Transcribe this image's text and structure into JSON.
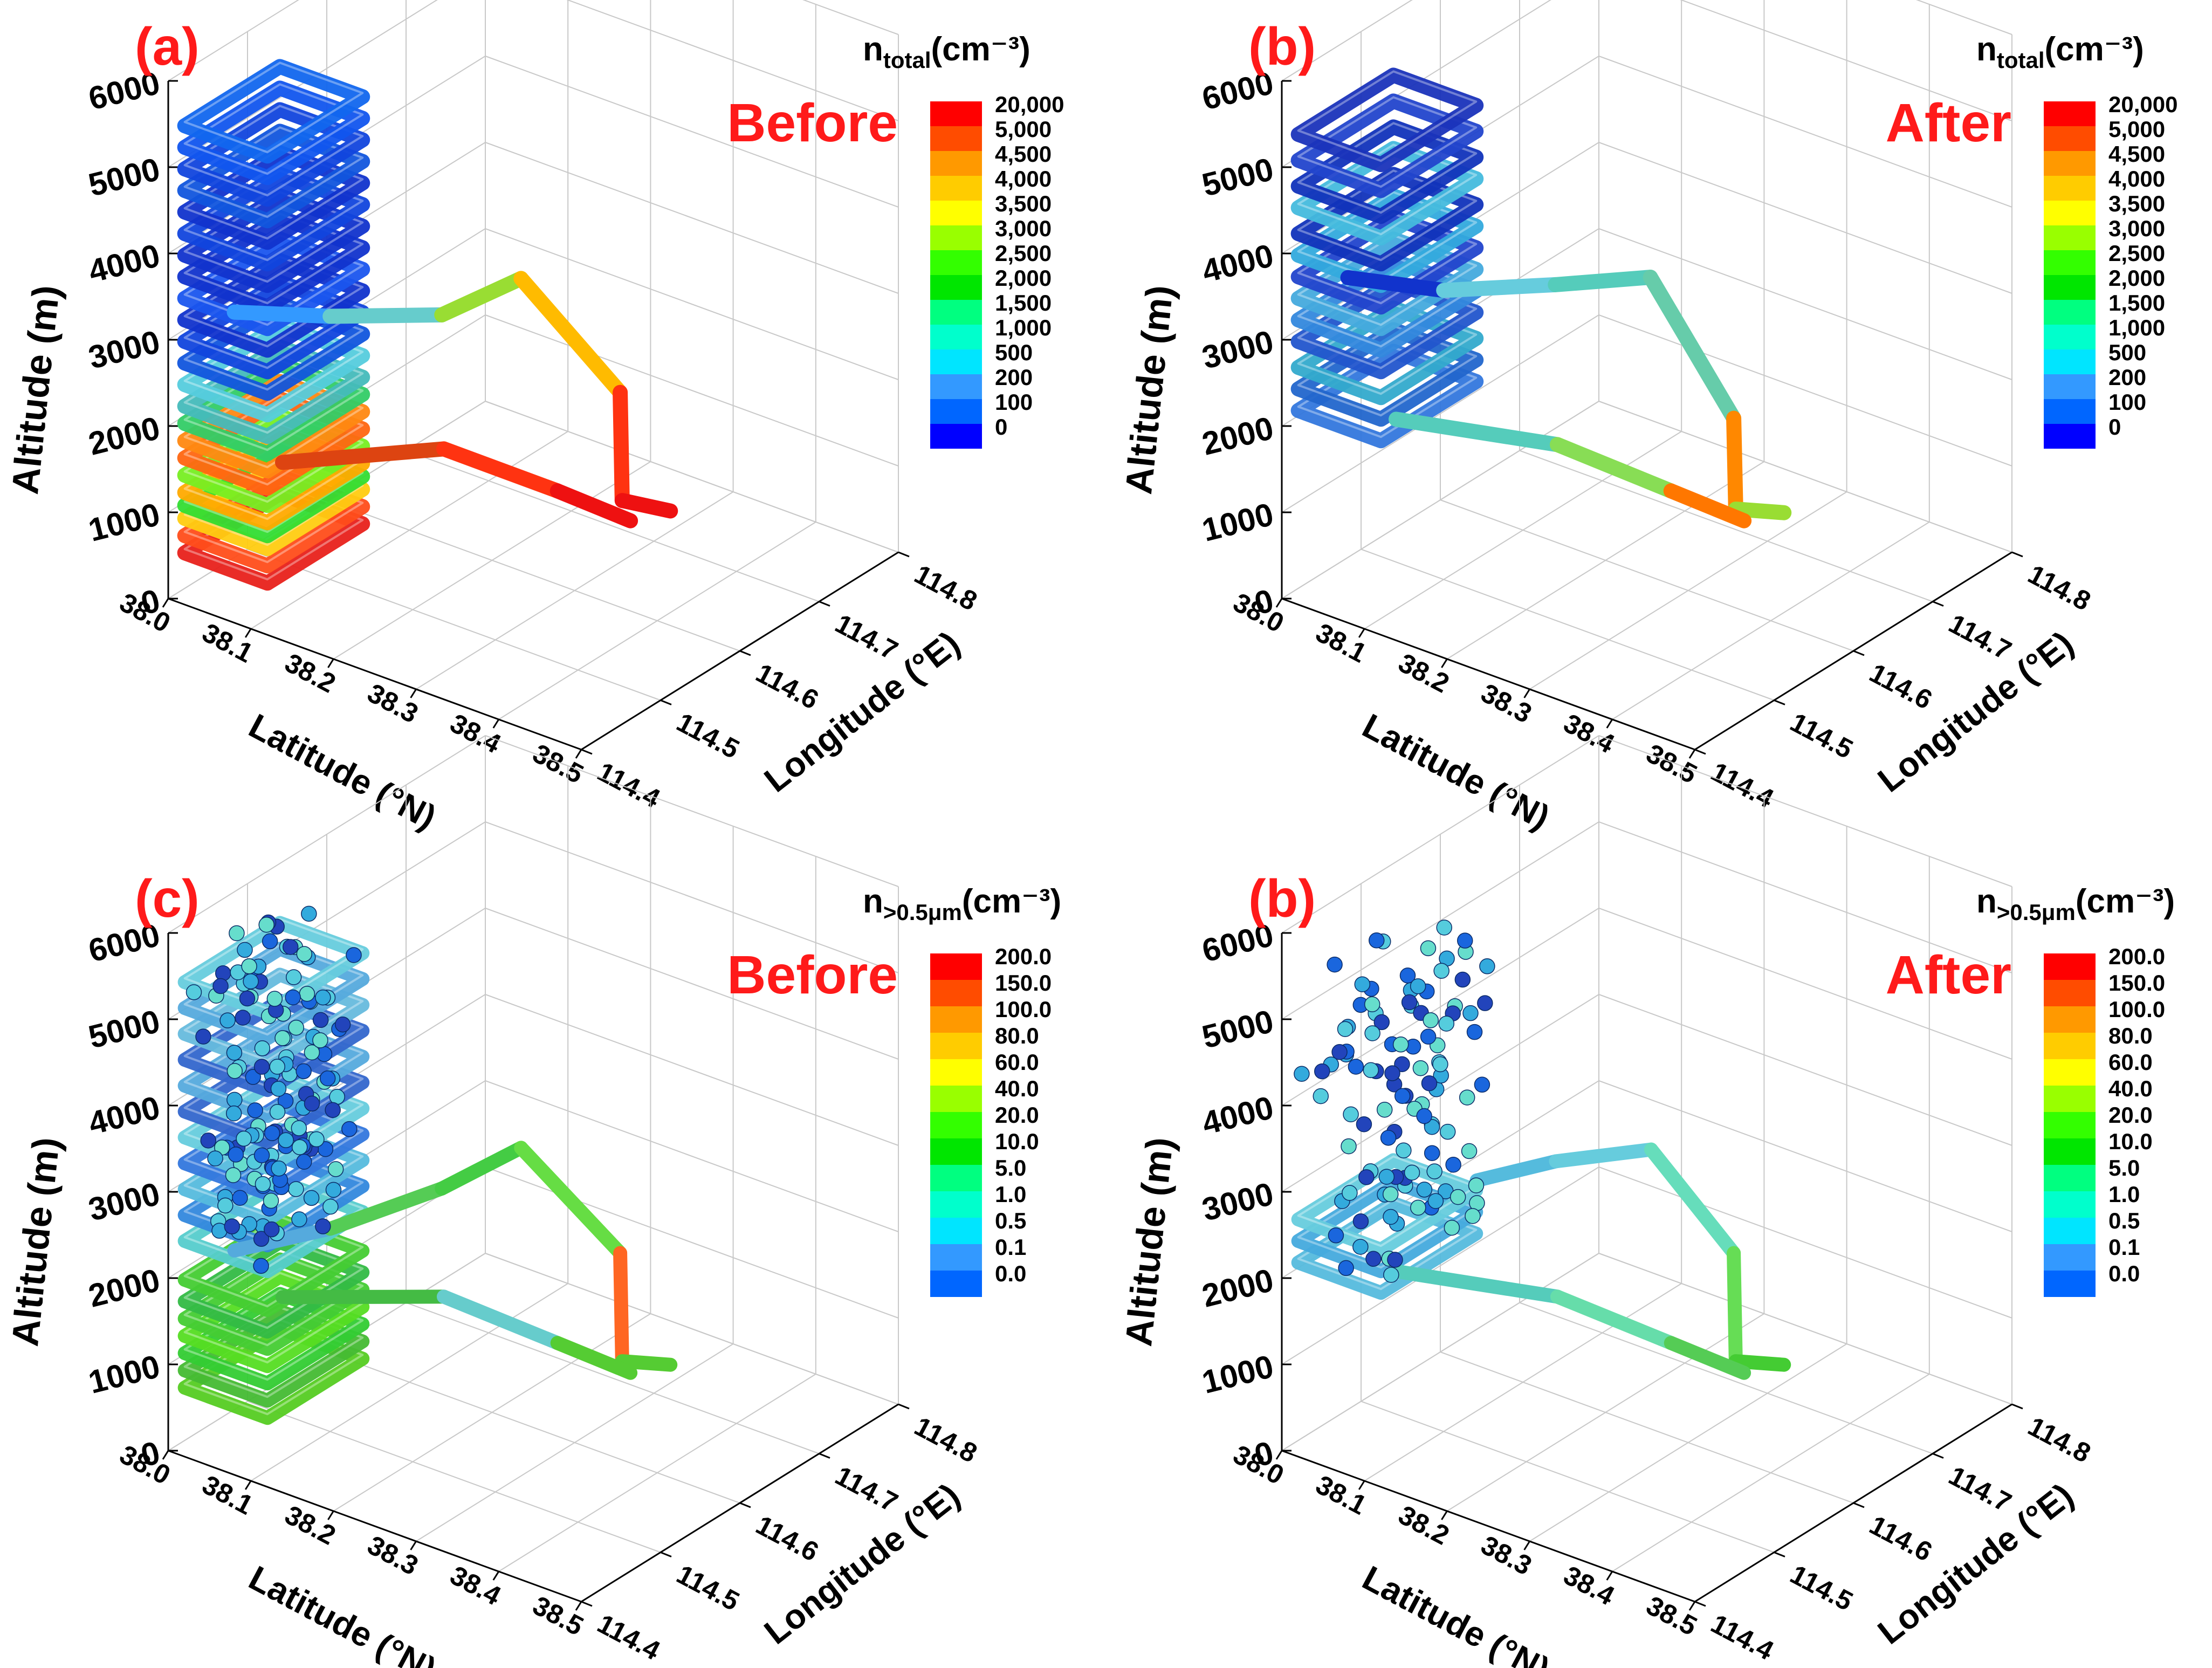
{
  "figure": {
    "panels": [
      {
        "label": "(a)",
        "state": "Before",
        "legend_title": {
          "main": "n",
          "sub": "total",
          "unit": "(cm⁻³)"
        },
        "legend_levels": [
          "20,000",
          "5,000",
          "4,500",
          "4,000",
          "3,500",
          "3,000",
          "2,500",
          "2,000",
          "1,500",
          "1,000",
          "500",
          "200",
          "100",
          "0"
        ]
      },
      {
        "label": "(b)",
        "state": "After",
        "legend_title": {
          "main": "n",
          "sub": "total",
          "unit": "(cm⁻³)"
        },
        "legend_levels": [
          "20,000",
          "5,000",
          "4,500",
          "4,000",
          "3,500",
          "3,000",
          "2,500",
          "2,000",
          "1,500",
          "1,000",
          "500",
          "200",
          "100",
          "0"
        ]
      },
      {
        "label": "(c)",
        "state": "Before",
        "legend_title": {
          "main": "n",
          "sub": ">0.5μm",
          "unit": "(cm⁻³)"
        },
        "legend_levels": [
          "200.0",
          "150.0",
          "100.0",
          "80.0",
          "60.0",
          "40.0",
          "20.0",
          "10.0",
          "5.0",
          "1.0",
          "0.5",
          "0.1",
          "0.0"
        ]
      },
      {
        "label": "(b)",
        "state": "After",
        "legend_title": {
          "main": "n",
          "sub": ">0.5μm",
          "unit": "(cm⁻³)"
        },
        "legend_levels": [
          "200.0",
          "150.0",
          "100.0",
          "80.0",
          "60.0",
          "40.0",
          "20.0",
          "10.0",
          "5.0",
          "1.0",
          "0.5",
          "0.1",
          "0.0"
        ]
      }
    ]
  },
  "chart_data": {
    "type": "3d-scatter-trajectory",
    "zlabel": "Altitude (m)",
    "xlabel": "Latitude (°N)",
    "ylabel": "Longitude (°E)",
    "z_ticks": [
      "0",
      "1000",
      "2000",
      "3000",
      "4000",
      "5000",
      "6000"
    ],
    "lat_ticks": [
      "38.0",
      "38.1",
      "38.2",
      "38.3",
      "38.4",
      "38.5"
    ],
    "lon_ticks": [
      "114.4",
      "114.5",
      "114.6",
      "114.7",
      "114.8"
    ],
    "zlim": [
      0,
      6000
    ],
    "lat_range": [
      38.0,
      38.5
    ],
    "lon_range": [
      114.4,
      114.8
    ],
    "colors": {
      "label_red": "#ff1a1a",
      "state_red": "#ff1a1a",
      "scale": [
        "#ff0000",
        "#ff4c00",
        "#ff9900",
        "#ffcc00",
        "#ffff00",
        "#99ff00",
        "#33ff00",
        "#00e600",
        "#00ff80",
        "#00ffcc",
        "#00e5ff",
        "#3399ff",
        "#0066ff",
        "#0000ff"
      ]
    },
    "series": [
      {
        "panel": 0,
        "name": "n_total before",
        "loop_band": [
          {
            "z": 600,
            "c": "#e8211b"
          },
          {
            "z": 800,
            "c": "#ff4d1a"
          },
          {
            "z": 1000,
            "c": "#ffcc11"
          },
          {
            "z": 1150,
            "c": "#33dd33"
          },
          {
            "z": 1300,
            "c": "#ffaa00"
          },
          {
            "z": 1500,
            "c": "#77ee22"
          },
          {
            "z": 1700,
            "c": "#ff6611"
          },
          {
            "z": 1900,
            "c": "#ff8811"
          },
          {
            "z": 2100,
            "c": "#33cc66"
          },
          {
            "z": 2300,
            "c": "#44bbbb"
          },
          {
            "z": 2550,
            "c": "#55ccdd"
          },
          {
            "z": 2800,
            "c": "#1155dd"
          },
          {
            "z": 3050,
            "c": "#1144dd"
          },
          {
            "z": 3300,
            "c": "#1133cc"
          },
          {
            "z": 3550,
            "c": "#1a55ee"
          },
          {
            "z": 3800,
            "c": "#1133cc"
          },
          {
            "z": 4050,
            "c": "#1133cc"
          },
          {
            "z": 4300,
            "c": "#1144dd"
          },
          {
            "z": 4550,
            "c": "#1133cc"
          },
          {
            "z": 4800,
            "c": "#1155dd"
          },
          {
            "z": 5050,
            "c": "#1144dd"
          },
          {
            "z": 5300,
            "c": "#1155ee"
          },
          {
            "z": 5550,
            "c": "#1166ee"
          }
        ],
        "path": [
          {
            "lat": 38.08,
            "lon": 114.4,
            "z": 3600,
            "c": "#1133cc"
          },
          {
            "lat": 38.1,
            "lon": 114.5,
            "z": 3050,
            "c": "#3399ff"
          },
          {
            "lat": 38.12,
            "lon": 114.62,
            "z": 2450,
            "c": "#66cccc"
          },
          {
            "lat": 38.12,
            "lon": 114.72,
            "z": 2300,
            "c": "#99dd33"
          },
          {
            "lat": 38.24,
            "lon": 114.72,
            "z": 1400,
            "c": "#ffbb00"
          },
          {
            "lat": 38.3,
            "lon": 114.66,
            "z": 700,
            "c": "#ff3311"
          },
          {
            "lat": 38.32,
            "lon": 114.7,
            "z": 420,
            "c": "#ee1111"
          }
        ],
        "outbound": [
          {
            "lat": 38.1,
            "lon": 114.44,
            "z": 1700,
            "c": "#ff7711"
          },
          {
            "lat": 38.18,
            "lon": 114.56,
            "z": 1450,
            "c": "#dd4411"
          },
          {
            "lat": 38.26,
            "lon": 114.62,
            "z": 900,
            "c": "#ff3311"
          },
          {
            "lat": 38.31,
            "lon": 114.66,
            "z": 500,
            "c": "#ee1111"
          }
        ]
      },
      {
        "panel": 1,
        "name": "n_total after",
        "loop_band": [
          {
            "z": 2250,
            "c": "#3377dd"
          },
          {
            "z": 2500,
            "c": "#2266cc"
          },
          {
            "z": 2750,
            "c": "#33aacc"
          },
          {
            "z": 3050,
            "c": "#2255cc"
          },
          {
            "z": 3300,
            "c": "#3388dd"
          },
          {
            "z": 3550,
            "c": "#44aadd"
          },
          {
            "z": 3800,
            "c": "#2244cc"
          },
          {
            "z": 4050,
            "c": "#33aadd"
          },
          {
            "z": 4300,
            "c": "#1133bb"
          },
          {
            "z": 4600,
            "c": "#44bbdd"
          },
          {
            "z": 4850,
            "c": "#1133bb"
          },
          {
            "z": 5150,
            "c": "#2244cc"
          },
          {
            "z": 5450,
            "c": "#1a33bb"
          }
        ],
        "path": [
          {
            "lat": 38.08,
            "lon": 114.4,
            "z": 4000,
            "c": "#1133cc"
          },
          {
            "lat": 38.1,
            "lon": 114.5,
            "z": 3350,
            "c": "#1133cc"
          },
          {
            "lat": 38.12,
            "lon": 114.62,
            "z": 2800,
            "c": "#66ccdd"
          },
          {
            "lat": 38.12,
            "lon": 114.74,
            "z": 2200,
            "c": "#55ccbb"
          },
          {
            "lat": 38.24,
            "lon": 114.72,
            "z": 1100,
            "c": "#66ccaa"
          },
          {
            "lat": 38.3,
            "lon": 114.66,
            "z": 600,
            "c": "#ff8800"
          },
          {
            "lat": 38.32,
            "lon": 114.7,
            "z": 400,
            "c": "#99dd33"
          }
        ],
        "outbound": [
          {
            "lat": 38.1,
            "lon": 114.44,
            "z": 2200,
            "c": "#66ccdd"
          },
          {
            "lat": 38.18,
            "lon": 114.56,
            "z": 1500,
            "c": "#55ccbb"
          },
          {
            "lat": 38.26,
            "lon": 114.62,
            "z": 900,
            "c": "#88dd55"
          },
          {
            "lat": 38.31,
            "lon": 114.66,
            "z": 500,
            "c": "#ff7700"
          }
        ]
      },
      {
        "panel": 2,
        "name": "n>0.5um before",
        "loop_band": [
          {
            "z": 800,
            "c": "#55cc22"
          },
          {
            "z": 1000,
            "c": "#44bb33"
          },
          {
            "z": 1200,
            "c": "#33cc33"
          },
          {
            "z": 1400,
            "c": "#55dd22"
          },
          {
            "z": 1600,
            "c": "#44cc33"
          },
          {
            "z": 1800,
            "c": "#33bb44"
          },
          {
            "z": 2050,
            "c": "#44cc33"
          },
          {
            "z": 2500,
            "c": "#55cccc"
          },
          {
            "z": 2800,
            "c": "#3388dd"
          },
          {
            "z": 3100,
            "c": "#55bbdd"
          },
          {
            "z": 3400,
            "c": "#3377dd"
          },
          {
            "z": 3700,
            "c": "#66ccdd"
          },
          {
            "z": 4000,
            "c": "#3366cc"
          },
          {
            "z": 4300,
            "c": "#55aadd"
          },
          {
            "z": 4600,
            "c": "#3366cc"
          },
          {
            "z": 4900,
            "c": "#66bbdd"
          },
          {
            "z": 5200,
            "c": "#55aadd"
          },
          {
            "z": 5500,
            "c": "#66ccdd"
          }
        ],
        "path": [
          {
            "lat": 38.08,
            "lon": 114.4,
            "z": 2600,
            "c": "#3377dd"
          },
          {
            "lat": 38.1,
            "lon": 114.5,
            "z": 2350,
            "c": "#55aadd"
          },
          {
            "lat": 38.12,
            "lon": 114.62,
            "z": 2200,
            "c": "#55cc55"
          },
          {
            "lat": 38.12,
            "lon": 114.72,
            "z": 2100,
            "c": "#44cc44"
          },
          {
            "lat": 38.24,
            "lon": 114.72,
            "z": 1300,
            "c": "#66dd44"
          },
          {
            "lat": 38.3,
            "lon": 114.66,
            "z": 600,
            "c": "#ff6622"
          },
          {
            "lat": 38.32,
            "lon": 114.7,
            "z": 400,
            "c": "#55cc33"
          }
        ],
        "outbound": [
          {
            "lat": 38.1,
            "lon": 114.44,
            "z": 1900,
            "c": "#55cc55"
          },
          {
            "lat": 38.18,
            "lon": 114.56,
            "z": 1500,
            "c": "#44bb44"
          },
          {
            "lat": 38.26,
            "lon": 114.62,
            "z": 900,
            "c": "#66cccc"
          },
          {
            "lat": 38.31,
            "lon": 114.66,
            "z": 500,
            "c": "#55cc33"
          }
        ]
      },
      {
        "panel": 3,
        "name": "n>0.5um after",
        "loop_band": [
          {
            "z": 2250,
            "c": "#55bbdd"
          },
          {
            "z": 2500,
            "c": "#44aadd"
          },
          {
            "z": 2750,
            "c": "#66ccdd"
          }
        ],
        "path": [
          {
            "lat": 38.14,
            "lon": 114.5,
            "z": 3050,
            "c": "#44aadd"
          },
          {
            "lat": 38.14,
            "lon": 114.6,
            "z": 2700,
            "c": "#55bbdd"
          },
          {
            "lat": 38.14,
            "lon": 114.72,
            "z": 2150,
            "c": "#66ccdd"
          },
          {
            "lat": 38.24,
            "lon": 114.72,
            "z": 1300,
            "c": "#66ddbb"
          },
          {
            "lat": 38.3,
            "lon": 114.66,
            "z": 600,
            "c": "#66dd55"
          },
          {
            "lat": 38.32,
            "lon": 114.7,
            "z": 400,
            "c": "#44cc33"
          }
        ],
        "outbound": [
          {
            "lat": 38.1,
            "lon": 114.44,
            "z": 2200,
            "c": "#66ccdd"
          },
          {
            "lat": 38.18,
            "lon": 114.56,
            "z": 1500,
            "c": "#55ccbb"
          },
          {
            "lat": 38.26,
            "lon": 114.62,
            "z": 900,
            "c": "#66ddaa"
          },
          {
            "lat": 38.31,
            "lon": 114.66,
            "z": 500,
            "c": "#55cc55"
          }
        ]
      }
    ]
  }
}
